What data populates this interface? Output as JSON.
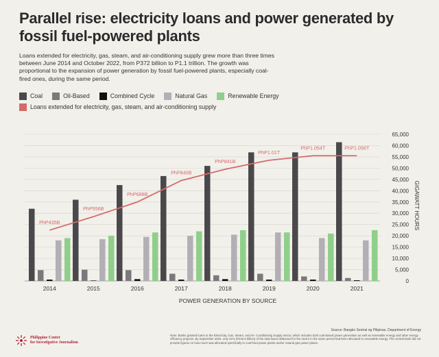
{
  "header": {
    "title": "Parallel rise: electricity loans and power generated by fossil fuel-powered plants",
    "subtitle": "Loans extended for electricity, gas, steam, and air-conditioning supply grew more than three times between June 2014 and October 2022, from P372 billion to P1.1 trillion. The growth was proportional to the expansion of power generation by fossil fuel-powered plants, especially coal-fired ones, during the same period."
  },
  "legend": {
    "coal": "Coal",
    "oil": "Oil-Based",
    "combined": "Combined Cycle",
    "gas": "Natural Gas",
    "renewable": "Renewable Energy",
    "loans": "Loans extended for electricity, gas, steam, and air-conditioning supply"
  },
  "colors": {
    "coal": "#4a484a",
    "oil": "#7b797b",
    "combined": "#111111",
    "gas": "#b2b0b4",
    "renewable": "#8fcf8a",
    "loans": "#d46a6a"
  },
  "footer": {
    "source": "Source: Bangko Sentral ng Pilipinas, Department of Energy",
    "note": "Note: Banks granted loans to the Electricity, Gas, Steam, and Air- Conditioning Supply sector, which includes both coal-based power generation as well as renewable energy and other energy efficiency projects. By September 2022, only 21% (P240.6 billion) of the total loans disbursed for the sector in the same period had been allocated to renewable energy. The central bank did not provide figures on how much was allocated specifically to coal-fired power plants and/or natural gas power plants.",
    "logo_line1": "Philippine Center",
    "logo_line2": "for Investigative Journalism"
  },
  "chart_data": {
    "type": "bar",
    "categories": [
      "2014",
      "2015",
      "2016",
      "2017",
      "2018",
      "2019",
      "2020",
      "2021"
    ],
    "series": [
      {
        "name": "Coal",
        "values": [
          32000,
          36000,
          42500,
          46500,
          51000,
          57000,
          57000,
          61500
        ]
      },
      {
        "name": "Oil-Based",
        "values": [
          4800,
          5000,
          4800,
          3200,
          2500,
          3200,
          2000,
          1300
        ]
      },
      {
        "name": "Combined Cycle",
        "values": [
          600,
          200,
          800,
          600,
          800,
          600,
          600,
          300
        ]
      },
      {
        "name": "Natural Gas",
        "values": [
          18000,
          18500,
          19500,
          20000,
          20500,
          21500,
          19000,
          18000
        ]
      },
      {
        "name": "Renewable Energy",
        "values": [
          19000,
          20000,
          21500,
          22000,
          22500,
          21500,
          21000,
          22500
        ]
      }
    ],
    "line": {
      "name": "Loans extended for electricity, gas, steam, and air-conditioning supply",
      "values": [
        22500,
        28500,
        35000,
        44500,
        49500,
        53500,
        55500,
        55500
      ],
      "labels": [
        "PhP435B",
        "PhP556B",
        "PhP688B",
        "PhP840B",
        "PhP841B",
        "PhP1.01T",
        "PhP1.054T",
        "PhP1.056T"
      ]
    },
    "ylim": [
      0,
      65000
    ],
    "yticks": [
      0,
      5000,
      10000,
      15000,
      20000,
      25000,
      30000,
      35000,
      40000,
      45000,
      50000,
      55000,
      60000,
      65000
    ],
    "ytick_labels": [
      "0",
      "5,000",
      "10,000",
      "15,000",
      "20,000",
      "25,000",
      "30,000",
      "35,000",
      "40,000",
      "45,000",
      "50,000",
      "55,000",
      "60,000",
      "65,000"
    ],
    "ylabel": "GIGAWATT HOURS",
    "xlabel": "POWER GENERATION BY SOURCE",
    "grid": true,
    "legend_position": "top-left"
  }
}
